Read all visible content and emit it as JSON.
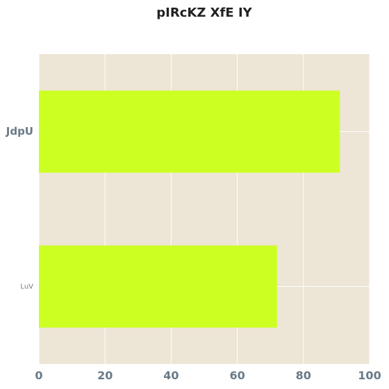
{
  "chart_data": {
    "type": "bar",
    "orientation": "horizontal",
    "title": "pIRcKZ XfE IY",
    "categories": [
      "JdpU",
      "LuV"
    ],
    "values": [
      91,
      72
    ],
    "xlabel": "",
    "ylabel": "",
    "xlim": [
      0,
      100
    ],
    "xticks": [
      0,
      20,
      40,
      60,
      80,
      100
    ],
    "grid": true,
    "legend": "none",
    "colors": {
      "bar": "#ccff22",
      "plot_background": "#ede5d5",
      "grid": "#ffffff",
      "tick_label": "#6a7a87"
    }
  }
}
